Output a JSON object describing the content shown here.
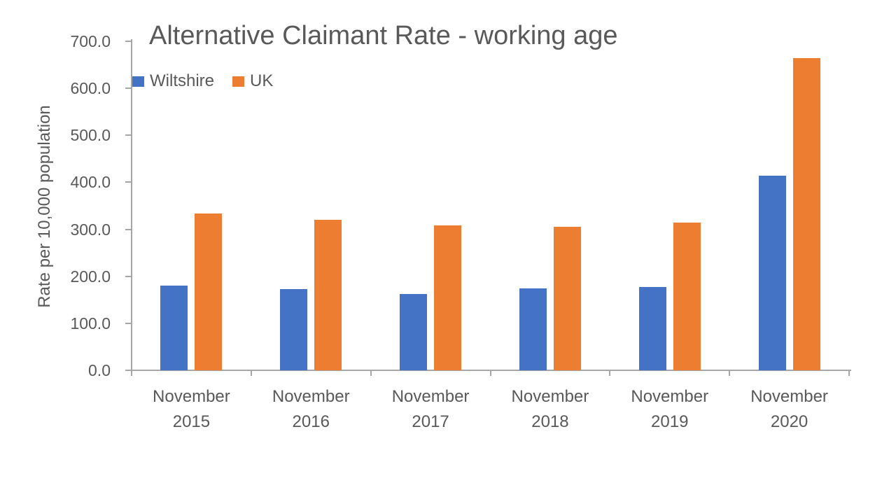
{
  "chart_data": {
    "type": "bar",
    "title": "Alternative Claimant Rate - working age",
    "ylabel": "Rate per 10,000 population",
    "xlabel": "",
    "categories": [
      [
        "November",
        "2015"
      ],
      [
        "November",
        "2016"
      ],
      [
        "November",
        "2017"
      ],
      [
        "November",
        "2018"
      ],
      [
        "November",
        "2019"
      ],
      [
        "November",
        "2020"
      ]
    ],
    "series": [
      {
        "name": "Wiltshire",
        "color": "#4472C4",
        "values": [
          180,
          173,
          162,
          174,
          177,
          414
        ]
      },
      {
        "name": "UK",
        "color": "#ED7D31",
        "values": [
          333,
          320,
          308,
          306,
          315,
          664
        ]
      }
    ],
    "ylim": [
      0,
      700
    ],
    "ytick_step": 100,
    "ytick_labels": [
      "0.0",
      "100.0",
      "200.0",
      "300.0",
      "400.0",
      "500.0",
      "600.0",
      "700.0"
    ],
    "legend_position": "top-left",
    "grid": false,
    "axis_color": "#a6a6a6",
    "text_color": "#595959",
    "background": "#ffffff"
  }
}
